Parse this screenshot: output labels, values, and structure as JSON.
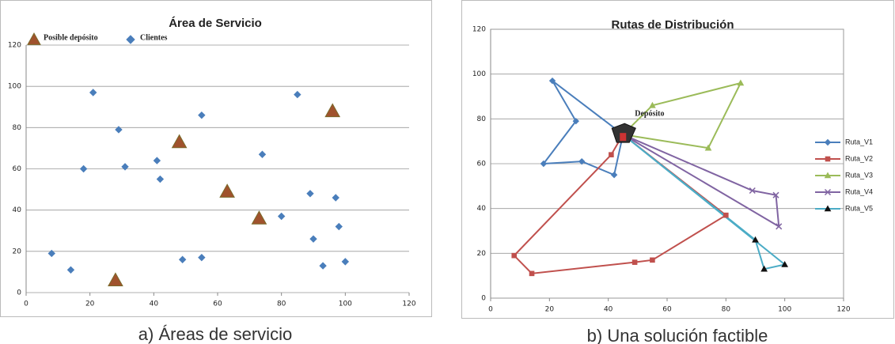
{
  "chart_data": [
    {
      "type": "scatter",
      "title": "Área de Servicio",
      "caption": "a) Áreas de servicio",
      "xlim": [
        0,
        120
      ],
      "xticks": [
        0,
        20,
        40,
        60,
        80,
        100,
        120
      ],
      "ylim": [
        0,
        120
      ],
      "yticks": [
        0,
        20,
        40,
        60,
        80,
        100,
        120
      ],
      "grid": true,
      "series": [
        {
          "name": "Posible depósito",
          "color": "#a0522d",
          "marker": "triangle",
          "x": [
            28,
            48,
            63,
            73,
            96
          ],
          "values": [
            6,
            73,
            49,
            36,
            88
          ]
        },
        {
          "name": "Clientes",
          "color": "#4a7ebb",
          "marker": "diamond",
          "x": [
            21,
            29,
            18,
            31,
            41,
            42,
            55,
            74,
            85,
            89,
            97,
            80,
            90,
            98,
            8,
            14,
            49,
            55,
            93,
            100
          ],
          "values": [
            97,
            79,
            60,
            61,
            64,
            55,
            86,
            67,
            96,
            48,
            46,
            37,
            26,
            32,
            19,
            11,
            16,
            17,
            13,
            15
          ]
        }
      ]
    },
    {
      "type": "line",
      "title": "Rutas de Distribución",
      "caption": "b) Una solución factible",
      "annotation": "Depósito",
      "xlim": [
        0,
        120
      ],
      "xticks": [
        0,
        20,
        40,
        60,
        80,
        100,
        120
      ],
      "ylim": [
        0,
        120
      ],
      "yticks": [
        0,
        20,
        40,
        60,
        80,
        100,
        120
      ],
      "grid": true,
      "series": [
        {
          "name": "Ruta_V1",
          "color": "#4a7ebb",
          "marker": "diamond",
          "x": [
            45,
            21,
            29,
            18,
            31,
            42,
            45
          ],
          "values": [
            73,
            97,
            79,
            60,
            61,
            55,
            73
          ]
        },
        {
          "name": "Ruta_V2",
          "color": "#c0504d",
          "marker": "square",
          "x": [
            45,
            41,
            8,
            14,
            49,
            55,
            80,
            45
          ],
          "values": [
            73,
            64,
            19,
            11,
            16,
            17,
            37,
            73
          ]
        },
        {
          "name": "Ruta_V3",
          "color": "#9bbb59",
          "marker": "triangle",
          "x": [
            45,
            55,
            85,
            74,
            45
          ],
          "values": [
            73,
            86,
            96,
            67,
            73
          ]
        },
        {
          "name": "Ruta_V4",
          "color": "#8064a2",
          "marker": "x",
          "x": [
            45,
            89,
            97,
            98,
            45
          ],
          "values": [
            73,
            48,
            46,
            32,
            73
          ]
        },
        {
          "name": "Ruta_V5",
          "color": "#4bacc6",
          "marker": "ftriangle",
          "x": [
            45,
            90,
            93,
            100,
            45
          ],
          "values": [
            73,
            26,
            13,
            15,
            73
          ]
        }
      ]
    }
  ]
}
